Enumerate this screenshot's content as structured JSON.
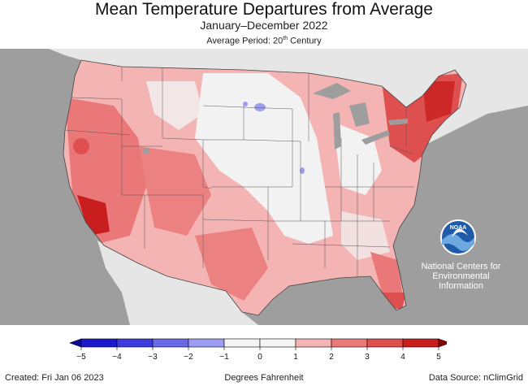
{
  "header": {
    "title": "Mean Temperature Departures from Average",
    "subtitle": "January–December 2022",
    "period_prefix": "Average Period: 20",
    "period_sup": "th",
    "period_suffix": " Century"
  },
  "logo": {
    "org_text": "NOAA",
    "caption_line1": "National Centers for",
    "caption_line2": "Environmental",
    "caption_line3": "Information"
  },
  "legend": {
    "ticks": [
      "−5",
      "−4",
      "−3",
      "−2",
      "−1",
      "0",
      "1",
      "2",
      "3",
      "4",
      "5"
    ],
    "colors": [
      "#1a1acc",
      "#3c3cdc",
      "#6a6ae6",
      "#9c9cf2",
      "#f4f4f4",
      "#f4f4f4",
      "#f4b4b4",
      "#ea7878",
      "#de5050",
      "#c81e1e"
    ],
    "units_label": "Degrees Fahrenheit"
  },
  "footer": {
    "created": "Created: Fri Jan 06 2023",
    "source": "Data Source: nClimGrid"
  },
  "colors": {
    "ocean": "#9e9e9e",
    "land_outside": "#e6e6e6",
    "lakes": "#9e9e9e",
    "near_normal": "#f2f2f2",
    "warm_light": "#f4b4b4",
    "warm": "#ea7878",
    "warm_strong": "#de5050",
    "warm_max": "#c81e1e",
    "cool_light": "#9c9cf2",
    "noaa_blue": "#1f5ba8",
    "noaa_light": "#6ea8e0"
  }
}
